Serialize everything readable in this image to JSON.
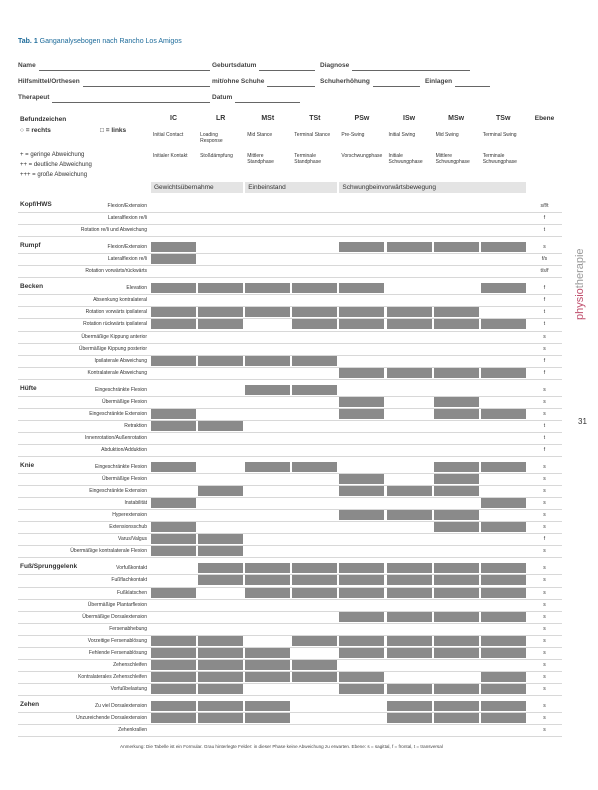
{
  "caption": {
    "number": "Tab. 1",
    "text": "Ganganalysebogen nach Rancho Los Amigos"
  },
  "form": {
    "rows": [
      [
        "Name",
        "Geburtsdatum",
        "Diagnose"
      ],
      [
        "Hilfsmittel/Orthesen",
        "mit/ohne Schuhe",
        "Schuherhöhung",
        "Einlagen"
      ],
      [
        "Therapeut",
        "Datum"
      ]
    ]
  },
  "legend": {
    "title": "Befundzeichen",
    "sides": [
      "○ = rechts",
      "□ = links"
    ],
    "grades": [
      "+ = geringe Abweichung",
      "++ = deutliche Abweichung",
      "+++ = große Abweichung"
    ]
  },
  "table": {
    "plane_header": "Ebene",
    "columns": [
      {
        "abbr": "IC",
        "en": "Initial Contact",
        "de": "Initialer Kontakt"
      },
      {
        "abbr": "LR",
        "en": "Loading Response",
        "de": "Stoßdämpfung"
      },
      {
        "abbr": "MSt",
        "en": "Mid Stance",
        "de": "Mittlere Standphase"
      },
      {
        "abbr": "TSt",
        "en": "Terminal Stance",
        "de": "Terminale Standphase"
      },
      {
        "abbr": "PSw",
        "en": "Pre-Swing",
        "de": "Vorschwungphase"
      },
      {
        "abbr": "ISw",
        "en": "Initial Swing",
        "de": "Initiale Schwungphase"
      },
      {
        "abbr": "MSw",
        "en": "Mid Swing",
        "de": "Mittlere Schwungphase"
      },
      {
        "abbr": "TSw",
        "en": "Terminal Swing",
        "de": "Terminale Schwungphase"
      }
    ],
    "phases": [
      {
        "label": "Gewichtsübernahme",
        "span": 2
      },
      {
        "label": "Einbeinstand",
        "span": 2
      },
      {
        "label": "Schwungbeinvorwärtsbewegung",
        "span": 4
      }
    ],
    "sections": [
      {
        "name": "Kopf/HWS",
        "rows": [
          {
            "label": "Flexion/Extension",
            "plane": "s/f/t",
            "shaded": [
              false,
              false,
              false,
              false,
              false,
              false,
              false,
              false
            ]
          },
          {
            "label": "Lateralflexion re/li",
            "plane": "f",
            "shaded": [
              false,
              false,
              false,
              false,
              false,
              false,
              false,
              false
            ]
          },
          {
            "label": "Rotation re/li und Abweichung",
            "plane": "t",
            "shaded": [
              false,
              false,
              false,
              false,
              false,
              false,
              false,
              false
            ]
          }
        ]
      },
      {
        "name": "Rumpf",
        "rows": [
          {
            "label": "Flexion/Extension",
            "plane": "s",
            "shaded": [
              true,
              false,
              false,
              false,
              true,
              true,
              true,
              true
            ]
          },
          {
            "label": "Lateralflexion re/li",
            "plane": "f/s",
            "shaded": [
              true,
              false,
              false,
              false,
              false,
              false,
              false,
              false
            ]
          },
          {
            "label": "Rotation vorwärts/rückwärts",
            "plane": "t/s/f",
            "shaded": [
              false,
              false,
              false,
              false,
              false,
              false,
              false,
              false
            ]
          }
        ]
      },
      {
        "name": "Becken",
        "rows": [
          {
            "label": "Elevation",
            "plane": "f",
            "shaded": [
              true,
              true,
              true,
              true,
              true,
              false,
              false,
              true
            ]
          },
          {
            "label": "Absenkung kontralateral",
            "plane": "f",
            "shaded": [
              false,
              false,
              false,
              false,
              false,
              false,
              false,
              false
            ]
          },
          {
            "label": "Rotation vorwärts ipsilateral",
            "plane": "t",
            "shaded": [
              true,
              true,
              true,
              true,
              true,
              true,
              true,
              false
            ]
          },
          {
            "label": "Rotation rückwärts ipsilateral",
            "plane": "t",
            "shaded": [
              true,
              true,
              false,
              true,
              true,
              true,
              true,
              true
            ]
          },
          {
            "label": "Übermäßige Kippung anterior",
            "plane": "s",
            "shaded": [
              false,
              false,
              false,
              false,
              false,
              false,
              false,
              false
            ]
          },
          {
            "label": "Übermäßige Kippung posterior",
            "plane": "s",
            "shaded": [
              false,
              false,
              false,
              false,
              false,
              false,
              false,
              false
            ]
          },
          {
            "label": "Ipsilaterale Abweichung",
            "plane": "f",
            "shaded": [
              true,
              true,
              true,
              true,
              false,
              false,
              false,
              false
            ]
          },
          {
            "label": "Kontralaterale Abweichung",
            "plane": "f",
            "shaded": [
              false,
              false,
              false,
              false,
              true,
              true,
              true,
              true
            ]
          }
        ]
      },
      {
        "name": "Hüfte",
        "rows": [
          {
            "label": "Eingeschränkte Flexion",
            "plane": "s",
            "shaded": [
              false,
              false,
              true,
              true,
              false,
              false,
              false,
              false
            ]
          },
          {
            "label": "Übermäßige Flexion",
            "plane": "s",
            "shaded": [
              false,
              false,
              false,
              false,
              true,
              false,
              true,
              false
            ]
          },
          {
            "label": "Eingeschränkte Extension",
            "plane": "s",
            "shaded": [
              true,
              false,
              false,
              false,
              true,
              false,
              true,
              true
            ]
          },
          {
            "label": "Retraktion",
            "plane": "t",
            "shaded": [
              true,
              true,
              false,
              false,
              false,
              false,
              false,
              false
            ]
          },
          {
            "label": "Innenrotation/Außenrotation",
            "plane": "t",
            "shaded": [
              false,
              false,
              false,
              false,
              false,
              false,
              false,
              false
            ]
          },
          {
            "label": "Abduktion/Adduktion",
            "plane": "f",
            "shaded": [
              false,
              false,
              false,
              false,
              false,
              false,
              false,
              false
            ]
          }
        ]
      },
      {
        "name": "Knie",
        "rows": [
          {
            "label": "Eingeschränkte Flexion",
            "plane": "s",
            "shaded": [
              true,
              false,
              true,
              true,
              false,
              false,
              true,
              true
            ]
          },
          {
            "label": "Übermäßige Flexion",
            "plane": "s",
            "shaded": [
              false,
              false,
              false,
              false,
              true,
              false,
              true,
              false
            ]
          },
          {
            "label": "Eingeschränkte Extension",
            "plane": "s",
            "shaded": [
              false,
              true,
              false,
              false,
              true,
              true,
              true,
              false
            ]
          },
          {
            "label": "Instabilität",
            "plane": "s",
            "shaded": [
              true,
              false,
              false,
              false,
              false,
              false,
              false,
              true
            ]
          },
          {
            "label": "Hyperextension",
            "plane": "s",
            "shaded": [
              false,
              false,
              false,
              false,
              true,
              true,
              true,
              false
            ]
          },
          {
            "label": "Extensionsschub",
            "plane": "s",
            "shaded": [
              true,
              false,
              false,
              false,
              false,
              false,
              true,
              true
            ]
          },
          {
            "label": "Varus/Valgus",
            "plane": "f",
            "shaded": [
              true,
              true,
              false,
              false,
              false,
              false,
              false,
              false
            ]
          },
          {
            "label": "Übermäßige kontralaterale Flexion",
            "plane": "s",
            "shaded": [
              true,
              true,
              false,
              false,
              false,
              false,
              false,
              false
            ]
          }
        ]
      },
      {
        "name": "Fuß/Sprunggelenk",
        "rows": [
          {
            "label": "Vorfußkontakt",
            "plane": "s",
            "shaded": [
              false,
              true,
              true,
              true,
              true,
              true,
              true,
              true
            ]
          },
          {
            "label": "Fußflachkontakt",
            "plane": "s",
            "shaded": [
              false,
              true,
              true,
              true,
              true,
              true,
              true,
              true
            ]
          },
          {
            "label": "Fußklatschen",
            "plane": "s",
            "shaded": [
              true,
              false,
              true,
              true,
              true,
              true,
              true,
              true
            ]
          },
          {
            "label": "Übermäßige Plantarflexion",
            "plane": "s",
            "shaded": [
              false,
              false,
              false,
              false,
              false,
              false,
              false,
              false
            ]
          },
          {
            "label": "Übermäßige Dorsalextension",
            "plane": "s",
            "shaded": [
              false,
              false,
              false,
              false,
              true,
              true,
              true,
              true
            ]
          },
          {
            "label": "Fersenabhebung",
            "plane": "s",
            "shaded": [
              false,
              false,
              false,
              false,
              false,
              false,
              false,
              false
            ]
          },
          {
            "label": "Vorzeitige Fersenablösung",
            "plane": "s",
            "shaded": [
              true,
              true,
              false,
              true,
              true,
              true,
              true,
              true
            ]
          },
          {
            "label": "Fehlende Fersenablösung",
            "plane": "s",
            "shaded": [
              true,
              true,
              true,
              false,
              true,
              true,
              true,
              true
            ]
          },
          {
            "label": "Zehenschleifen",
            "plane": "s",
            "shaded": [
              true,
              true,
              true,
              true,
              false,
              false,
              false,
              false
            ]
          },
          {
            "label": "Kontralaterales Zehenschleifen",
            "plane": "s",
            "shaded": [
              true,
              true,
              true,
              true,
              true,
              false,
              false,
              true
            ]
          },
          {
            "label": "Vorfußbelastung",
            "plane": "s",
            "shaded": [
              true,
              true,
              false,
              false,
              true,
              true,
              true,
              true
            ]
          }
        ]
      },
      {
        "name": "Zehen",
        "rows": [
          {
            "label": "Zu viel Dorsalextension",
            "plane": "s",
            "shaded": [
              true,
              true,
              true,
              false,
              false,
              true,
              true,
              true
            ]
          },
          {
            "label": "Unzureichende Dorsalextension",
            "plane": "s",
            "shaded": [
              true,
              true,
              true,
              false,
              false,
              true,
              true,
              true
            ]
          },
          {
            "label": "Zehenkrallen",
            "plane": "s",
            "shaded": [
              false,
              false,
              false,
              false,
              false,
              false,
              false,
              false
            ]
          }
        ]
      }
    ]
  },
  "footer": "Anmerkung: Die Tabelle ist ein Formular. Grau hinterlegte Felder: in dieser Phase keine Abweichung zu erwarten. Ebene: s = sagittal, f = frontal, t = transversal",
  "sidebar": {
    "journal_a": "physio",
    "journal_b": "therapie",
    "page": "31"
  }
}
